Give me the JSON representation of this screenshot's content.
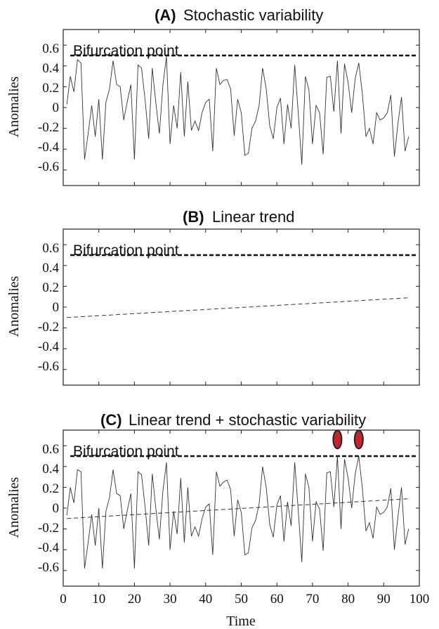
{
  "chart_data": [
    {
      "type": "line",
      "panel_label": "(A)",
      "title": "Stochastic variability",
      "ylabel": "Anomalies",
      "xlabel": "",
      "xlim": [
        0,
        100
      ],
      "ylim": [
        -0.75,
        0.75
      ],
      "yticks": [
        0.6,
        0.4,
        0.2,
        0,
        -0.2,
        -0.4,
        -0.6
      ],
      "ytick_labels": [
        "0.6",
        "0.4",
        "0.2",
        "0",
        "-0.2",
        "-0.4",
        "-0.6"
      ],
      "xticks": [
        0,
        10,
        20,
        30,
        40,
        50,
        60,
        70,
        80,
        90,
        100
      ],
      "xtick_labels": [],
      "threshold": {
        "label": "Bifurcation point",
        "value": 0.5
      },
      "series": [
        {
          "style": "solid",
          "x": [
            1,
            2,
            3,
            4,
            5,
            6,
            7,
            8,
            9,
            10,
            11,
            12,
            13,
            14,
            15,
            16,
            17,
            18,
            19,
            20,
            21,
            22,
            23,
            24,
            25,
            26,
            27,
            28,
            29,
            30,
            31,
            32,
            33,
            34,
            35,
            36,
            37,
            38,
            39,
            40,
            41,
            42,
            43,
            44,
            45,
            46,
            47,
            48,
            49,
            50,
            51,
            52,
            53,
            54,
            55,
            56,
            57,
            58,
            59,
            60,
            61,
            62,
            63,
            64,
            65,
            66,
            67,
            68,
            69,
            70,
            71,
            72,
            73,
            74,
            75,
            76,
            77,
            78,
            79,
            80,
            81,
            82,
            83,
            84,
            85,
            86,
            87,
            88,
            89,
            90,
            91,
            92,
            93,
            94,
            95,
            96,
            97
          ],
          "y": [
            0.03,
            0.3,
            0.15,
            0.46,
            0.43,
            -0.5,
            -0.25,
            0.02,
            -0.28,
            0.08,
            -0.5,
            0.05,
            0.18,
            0.45,
            0.22,
            0.2,
            -0.12,
            0.06,
            0.22,
            -0.5,
            0.41,
            0.38,
            0.07,
            -0.3,
            0.38,
            0.05,
            -0.25,
            0.22,
            0.49,
            -0.35,
            0.02,
            -0.2,
            0.34,
            -0.28,
            0.25,
            -0.22,
            -0.13,
            -0.22,
            -0.05,
            0.05,
            0.08,
            -0.42,
            0.38,
            0.22,
            0.26,
            0.27,
            0.18,
            -0.27,
            0.08,
            -0.05,
            -0.46,
            -0.44,
            -0.2,
            -0.13,
            0.02,
            0.38,
            0.18,
            -0.18,
            -0.3,
            0.0,
            0.09,
            -0.35,
            0.03,
            -0.2,
            0.41,
            -0.05,
            -0.55,
            0.3,
            0.17,
            -0.35,
            0.02,
            -0.05,
            -0.45,
            0.29,
            0.3,
            -0.04,
            0.45,
            -0.25,
            0.42,
            0.24,
            -0.05,
            0.28,
            0.43,
            0.13,
            -0.28,
            -0.2,
            -0.35,
            -0.05,
            -0.12,
            -0.1,
            -0.05,
            0.12,
            -0.47,
            -0.15,
            0.1,
            -0.42,
            -0.28
          ]
        }
      ]
    },
    {
      "type": "line",
      "panel_label": "(B)",
      "title": "Linear trend",
      "ylabel": "Anomalies",
      "xlabel": "",
      "xlim": [
        0,
        100
      ],
      "ylim": [
        -0.75,
        0.75
      ],
      "yticks": [
        0.6,
        0.4,
        0.2,
        0,
        -0.2,
        -0.4,
        -0.6
      ],
      "ytick_labels": [
        "0.6",
        "0.4",
        "0.2",
        "0",
        "-0.2",
        "-0.4",
        "-0.6"
      ],
      "xticks": [
        0,
        10,
        20,
        30,
        40,
        50,
        60,
        70,
        80,
        90,
        100
      ],
      "xtick_labels": [],
      "threshold": {
        "label": "Bifurcation point",
        "value": 0.5
      },
      "series": [
        {
          "style": "dashed",
          "x": [
            1,
            97
          ],
          "y": [
            -0.1,
            0.09
          ]
        }
      ]
    },
    {
      "type": "line",
      "panel_label": "(C)",
      "title": "Linear trend + stochastic variability",
      "ylabel": "Anomalies",
      "xlabel": "Time",
      "xlim": [
        0,
        100
      ],
      "ylim": [
        -0.75,
        0.75
      ],
      "yticks": [
        0.6,
        0.4,
        0.2,
        0,
        -0.2,
        -0.4,
        -0.6
      ],
      "ytick_labels": [
        "0.6",
        "0.4",
        "0.2",
        "0",
        "-0.2",
        "-0.4",
        "-0.6"
      ],
      "xticks": [
        0,
        10,
        20,
        30,
        40,
        50,
        60,
        70,
        80,
        90,
        100
      ],
      "xtick_labels": [
        "0",
        "10",
        "20",
        "30",
        "40",
        "50",
        "60",
        "70",
        "80",
        "90",
        "100"
      ],
      "threshold": {
        "label": "Bifurcation point",
        "value": 0.5
      },
      "markers": [
        {
          "x": 77,
          "y": 0.66,
          "color": "#c0272d"
        },
        {
          "x": 83,
          "y": 0.66,
          "color": "#c0272d"
        }
      ],
      "series": [
        {
          "style": "dashed",
          "x": [
            1,
            97
          ],
          "y": [
            -0.1,
            0.09
          ]
        },
        {
          "style": "solid",
          "x": [
            1,
            2,
            3,
            4,
            5,
            6,
            7,
            8,
            9,
            10,
            11,
            12,
            13,
            14,
            15,
            16,
            17,
            18,
            19,
            20,
            21,
            22,
            23,
            24,
            25,
            26,
            27,
            28,
            29,
            30,
            31,
            32,
            33,
            34,
            35,
            36,
            37,
            38,
            39,
            40,
            41,
            42,
            43,
            44,
            45,
            46,
            47,
            48,
            49,
            50,
            51,
            52,
            53,
            54,
            55,
            56,
            57,
            58,
            59,
            60,
            61,
            62,
            63,
            64,
            65,
            66,
            67,
            68,
            69,
            70,
            71,
            72,
            73,
            74,
            75,
            76,
            77,
            78,
            79,
            80,
            81,
            82,
            83,
            84,
            85,
            86,
            87,
            88,
            89,
            90,
            91,
            92,
            93,
            94,
            95,
            96,
            97
          ],
          "y": [
            -0.07,
            0.2,
            0.05,
            0.37,
            0.35,
            -0.58,
            -0.33,
            -0.06,
            -0.36,
            0.0,
            -0.58,
            -0.03,
            0.1,
            0.37,
            0.14,
            0.12,
            -0.2,
            -0.02,
            0.14,
            -0.58,
            0.35,
            0.32,
            0.01,
            -0.36,
            0.33,
            0.0,
            -0.3,
            0.17,
            0.44,
            -0.4,
            -0.03,
            -0.25,
            0.29,
            -0.33,
            0.2,
            -0.27,
            -0.18,
            -0.27,
            -0.1,
            0.01,
            0.04,
            -0.45,
            0.35,
            0.21,
            0.25,
            0.27,
            0.18,
            -0.27,
            0.08,
            -0.04,
            -0.45,
            -0.43,
            -0.19,
            -0.12,
            0.04,
            0.4,
            0.2,
            -0.16,
            -0.28,
            0.03,
            0.12,
            -0.32,
            0.06,
            -0.17,
            0.44,
            -0.02,
            -0.52,
            0.33,
            0.2,
            -0.32,
            0.06,
            -0.01,
            -0.41,
            0.34,
            0.35,
            0.01,
            0.5,
            -0.2,
            0.47,
            0.29,
            0.0,
            0.33,
            0.5,
            0.19,
            -0.22,
            -0.14,
            -0.29,
            0.01,
            -0.06,
            -0.04,
            0.01,
            0.19,
            -0.4,
            -0.08,
            0.2,
            -0.35,
            -0.2
          ]
        }
      ]
    }
  ]
}
